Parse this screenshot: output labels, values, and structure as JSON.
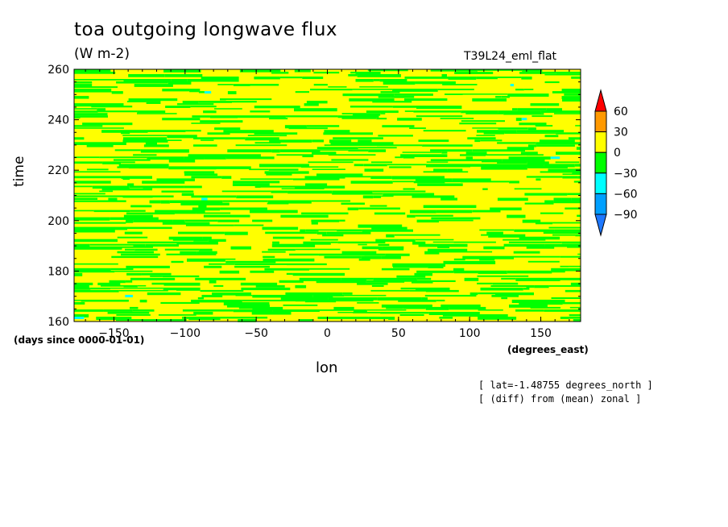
{
  "chart_data": {
    "type": "heatmap",
    "title": "toa outgoing longwave flux",
    "units": "(W m-2)",
    "run_name": "T39L24_eml_flat",
    "xlabel": "lon",
    "ylabel": "time",
    "x_units": "(degrees_east)",
    "y_units": "(days since 0000-01-01)",
    "xlim": [
      -178,
      178
    ],
    "ylim": [
      160,
      260
    ],
    "x_ticks": [
      -150,
      -100,
      -50,
      0,
      50,
      100,
      150
    ],
    "x_tick_labels": [
      "-150",
      "-100",
      "-50",
      "0",
      "50",
      "100",
      "150"
    ],
    "y_ticks": [
      160,
      180,
      200,
      220,
      240,
      260
    ],
    "y_tick_labels": [
      "160",
      "180",
      "200",
      "220",
      "240",
      "260"
    ],
    "notes": [
      "[ lat=-1.48755 degrees_north ]",
      "[ (diff) from (mean) zonal ]"
    ],
    "colorbar": {
      "levels": [
        -90,
        -60,
        -30,
        0,
        30,
        60
      ],
      "level_labels": [
        "-90",
        "-60",
        "-30",
        "0",
        "30",
        "60"
      ],
      "colors": [
        "#1e78ff",
        "#00a0ff",
        "#00ffff",
        "#00ff00",
        "#ffff00",
        "#ff9900",
        "#ff0000"
      ],
      "extend": "both"
    },
    "dominant_bins": [
      {
        "range": [
          0,
          30
        ],
        "color": "#ffff00",
        "coverage": "majority"
      },
      {
        "range": [
          -30,
          0
        ],
        "color": "#00ff00",
        "coverage": "large"
      },
      {
        "range": [
          -60,
          -30
        ],
        "color": "#00ffff",
        "coverage": "rare"
      }
    ],
    "grid": false
  }
}
